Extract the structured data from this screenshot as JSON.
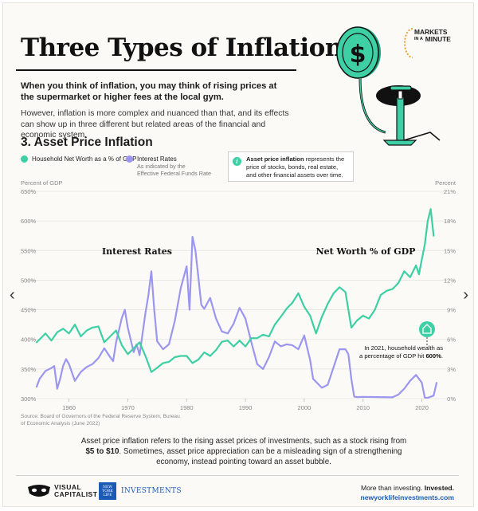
{
  "header": {
    "title": "Three Types of Inflation",
    "intro_bold": "When you think of inflation, you may think of rising prices at the supermarket or higher fees at the local gym.",
    "intro": "However, inflation is more complex and nuanced than that, and its effects can show up in three different but related areas of the financial and economic system.",
    "section": "3. Asset Price Inflation",
    "brand_line1": "MARKETS",
    "brand_line2": "IN A",
    "brand_line3": "MINUTE"
  },
  "legend": {
    "networth": "Household Net Worth as a % of GDP",
    "rates": "Interest Rates",
    "rates_sub1": "As indicated by the",
    "rates_sub2": "Effective Federal Funds Rate"
  },
  "infobox": {
    "icon": "i",
    "bold": "Asset price inflation",
    "text": " represents the price of stocks, bonds, real estate, and other financial assets over time."
  },
  "axes": {
    "left_unit": "Percent of GDP",
    "right_unit": "Percent"
  },
  "source": "Source: Board of Governors of the Federal Reserve System, Bureau of Economic Analysis (June 2022)",
  "footnote": {
    "part1": "Asset price inflation refers to the rising asset prices of investments, such as a stock rising from ",
    "bold": "$5 to $10",
    "part2": ". Sometimes, asset price appreciation can be a misleading sign of a strengthening economy, instead pointing toward an asset bubble."
  },
  "footer": {
    "vc1": "VISUAL",
    "vc2": "CAPITALIST",
    "nyl_box": "NEW YORK LIFE",
    "nyl": "INVESTMENTS",
    "tag1": "More than investing. ",
    "tag1_bold": "Invested.",
    "url": "newyorklifeinvestments.com"
  },
  "nav": {
    "prev": "‹",
    "next": "›"
  },
  "colors": {
    "networth": "#3ecfa5",
    "rates": "#9b96ee",
    "brand_blue": "#1c5bb5",
    "accent_teal": "#3ecfa5"
  },
  "icons": [
    "dollar-coin-icon",
    "bicycle-pump-icon",
    "house-icon",
    "info-icon",
    "chevron-left-icon",
    "chevron-right-icon"
  ],
  "chart_data": {
    "type": "line",
    "title": "3. Asset Price Inflation",
    "x_ticks": [
      "1960",
      "1970",
      "1980",
      "1990",
      "2000",
      "2010",
      "2020"
    ],
    "x_range": [
      1954.5,
      2022.5
    ],
    "y_left_ticks": [
      "650%",
      "600%",
      "550%",
      "500%",
      "450%",
      "400%",
      "350%",
      "300%"
    ],
    "y_left_range": [
      300,
      650
    ],
    "y_left_label": "Percent of GDP",
    "y_right_ticks": [
      "21%",
      "18%",
      "15%",
      "12%",
      "9%",
      "6%",
      "3%",
      "0%"
    ],
    "y_right_range": [
      0,
      21
    ],
    "y_right_label": "Percent",
    "grid": true,
    "series": [
      {
        "name": "Household Net Worth as a % of GDP",
        "axis": "left",
        "x": [
          1954.5,
          1956,
          1957,
          1958,
          1959,
          1960,
          1961,
          1962,
          1963,
          1964,
          1965,
          1966,
          1967,
          1968,
          1969,
          1970,
          1971,
          1972,
          1973,
          1974,
          1975,
          1976,
          1977,
          1978,
          1979,
          1980,
          1981,
          1982,
          1983,
          1984,
          1985,
          1986,
          1987,
          1988,
          1989,
          1990,
          1991,
          1992,
          1993,
          1994,
          1995,
          1996,
          1997,
          1998,
          1999,
          2000,
          2001,
          2002,
          2003,
          2004,
          2005,
          2006,
          2007,
          2008,
          2009,
          2010,
          2011,
          2012,
          2013,
          2014,
          2015,
          2016,
          2017,
          2018,
          2019,
          2019.5,
          2020,
          2020.5,
          2021,
          2021.5,
          2022
        ],
        "values": [
          395,
          410,
          398,
          412,
          418,
          410,
          425,
          405,
          415,
          420,
          422,
          395,
          405,
          415,
          390,
          375,
          385,
          395,
          372,
          345,
          352,
          360,
          362,
          370,
          372,
          372,
          360,
          366,
          378,
          372,
          382,
          396,
          398,
          388,
          398,
          388,
          402,
          402,
          408,
          405,
          425,
          438,
          452,
          462,
          478,
          455,
          440,
          410,
          438,
          460,
          478,
          488,
          480,
          420,
          432,
          440,
          435,
          450,
          475,
          482,
          485,
          495,
          515,
          505,
          525,
          510,
          535,
          560,
          600,
          620,
          575
        ]
      },
      {
        "name": "Interest Rates",
        "axis": "right",
        "x": [
          1954.5,
          1955,
          1956,
          1957,
          1957.5,
          1958,
          1958.5,
          1959,
          1959.5,
          1960,
          1961,
          1962,
          1963,
          1964,
          1965,
          1966,
          1967,
          1967.5,
          1968,
          1969,
          1969.5,
          1970,
          1971,
          1971.5,
          1972,
          1973,
          1973.5,
          1974,
          1974.5,
          1975,
          1976,
          1977,
          1978,
          1979,
          1980,
          1980.5,
          1981,
          1981.5,
          1982,
          1982.5,
          1983,
          1984,
          1985,
          1986,
          1987,
          1988,
          1989,
          1990,
          1991,
          1992,
          1993,
          1994,
          1995,
          1996,
          1997,
          1998,
          1999,
          2000,
          2001,
          2001.5,
          2002,
          2003,
          2004,
          2005,
          2006,
          2007,
          2007.5,
          2008,
          2008.5,
          2009,
          2010,
          2015,
          2016,
          2017,
          2018,
          2019,
          2019.5,
          2020,
          2020.5,
          2021,
          2022,
          2022.5
        ],
        "values": [
          1.2,
          2.0,
          2.8,
          3.1,
          3.3,
          1.0,
          2.0,
          3.3,
          4.0,
          3.5,
          1.8,
          2.7,
          3.2,
          3.5,
          4.1,
          5.1,
          4.2,
          3.8,
          5.7,
          8.2,
          9.0,
          7.2,
          4.7,
          5.5,
          4.4,
          8.7,
          10.5,
          12.9,
          9.0,
          5.8,
          5.0,
          5.5,
          7.9,
          11.2,
          13.4,
          9.0,
          16.4,
          15.0,
          12.3,
          9.5,
          9.1,
          10.2,
          8.1,
          6.8,
          6.6,
          7.6,
          9.2,
          8.1,
          5.7,
          3.5,
          3.0,
          4.2,
          5.8,
          5.3,
          5.5,
          5.4,
          5.0,
          6.4,
          3.9,
          2.0,
          1.7,
          1.1,
          1.4,
          3.2,
          5.0,
          5.0,
          4.5,
          2.0,
          0.2,
          0.15,
          0.18,
          0.13,
          0.4,
          1.0,
          1.8,
          2.4,
          2.0,
          1.6,
          0.1,
          0.08,
          0.3,
          1.6
        ]
      }
    ],
    "annotations": [
      {
        "text": "Interest Rates",
        "near_series": "Interest Rates"
      },
      {
        "text": "Net Worth % of GDP",
        "near_series": "Household Net Worth as a % of GDP"
      },
      {
        "text_prefix": "In 2021, household wealth as a percentage of GDP hit ",
        "text_bold": "600%",
        "text_suffix": ".",
        "x": 2021
      }
    ]
  }
}
